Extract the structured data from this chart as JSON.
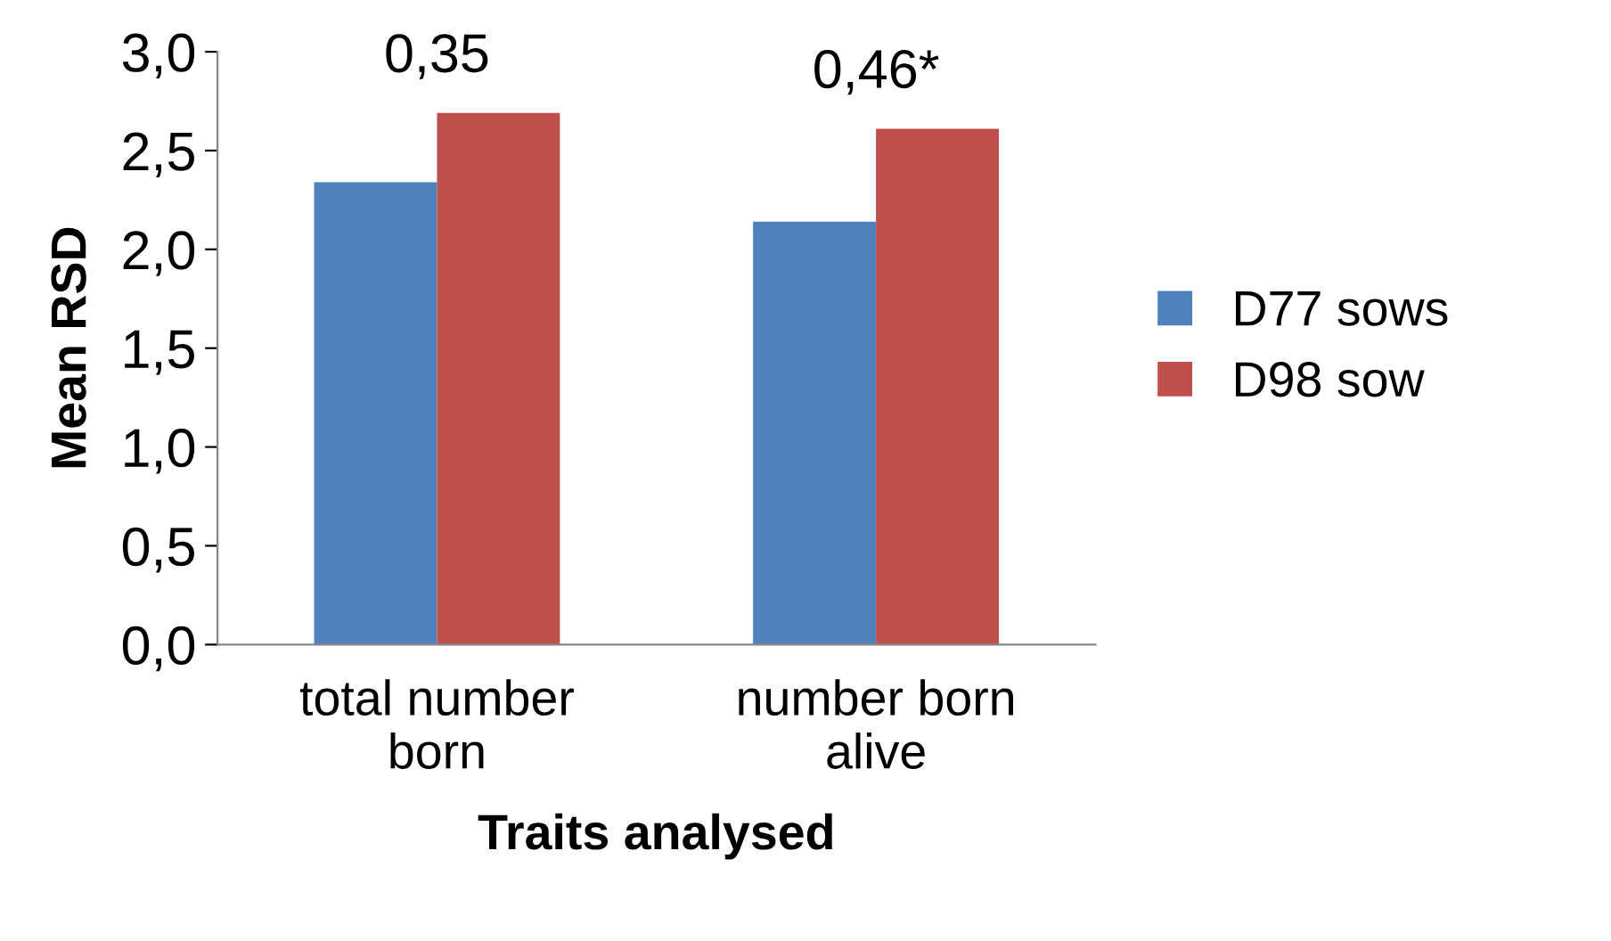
{
  "chart_data": {
    "type": "bar",
    "xlabel": "Traits analysed",
    "ylabel": "Mean RSD",
    "categories": [
      "total number\nborn",
      "number born\nalive"
    ],
    "series": [
      {
        "name": "D77 sows",
        "color": "#4f81bd",
        "values": [
          2.34,
          2.14
        ]
      },
      {
        "name": "D98 sow",
        "color": "#c0504d",
        "values": [
          2.69,
          2.61
        ]
      }
    ],
    "ylim": [
      0,
      3
    ],
    "yticks": [
      {
        "value": 0,
        "label": "0,0"
      },
      {
        "value": 0.5,
        "label": "0,5"
      },
      {
        "value": 1,
        "label": "1,0"
      },
      {
        "value": 1.5,
        "label": "1,5"
      },
      {
        "value": 2,
        "label": "2,0"
      },
      {
        "value": 2.5,
        "label": "2,5"
      },
      {
        "value": 3,
        "label": "3,0"
      }
    ],
    "annotations": [
      "0,35",
      "0,46*"
    ],
    "grid": false,
    "legend": "right"
  }
}
